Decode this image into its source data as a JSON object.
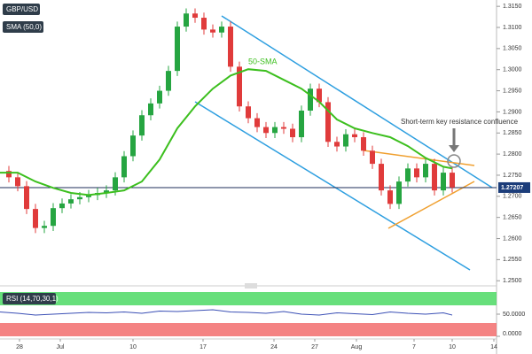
{
  "chart_data": {
    "type": "candlestick",
    "symbol": "GBP/USD",
    "up_color": "#26a541",
    "down_color": "#e03b3b",
    "xlim": [
      0,
      56
    ],
    "xticks": [
      {
        "value": 2.2,
        "label": "28"
      },
      {
        "value": 6.8,
        "label": "Jul"
      },
      {
        "value": 15,
        "label": "10"
      },
      {
        "value": 22.9,
        "label": "17"
      },
      {
        "value": 30.9,
        "label": "24"
      },
      {
        "value": 35.5,
        "label": "27"
      },
      {
        "value": 40.2,
        "label": "Aug"
      },
      {
        "value": 46.7,
        "label": "7"
      },
      {
        "value": 51,
        "label": "10"
      },
      {
        "value": 55.7,
        "label": "14"
      }
    ],
    "ylim": [
      1.249,
      1.3165
    ],
    "yticks": [
      {
        "value": 1.25,
        "label": "1.2500"
      },
      {
        "value": 1.255,
        "label": "1.2550"
      },
      {
        "value": 1.26,
        "label": "1.2600"
      },
      {
        "value": 1.265,
        "label": "1.2650"
      },
      {
        "value": 1.27,
        "label": "1.2700"
      },
      {
        "value": 1.275,
        "label": "1.2750"
      },
      {
        "value": 1.28,
        "label": "1.2800"
      },
      {
        "value": 1.285,
        "label": "1.2850"
      },
      {
        "value": 1.29,
        "label": "1.2900"
      },
      {
        "value": 1.295,
        "label": "1.2950"
      },
      {
        "value": 1.3,
        "label": "1.3000"
      },
      {
        "value": 1.305,
        "label": "1.3050"
      },
      {
        "value": 1.31,
        "label": "1.3100"
      },
      {
        "value": 1.315,
        "label": "1.3150"
      }
    ],
    "last_price": 1.27207,
    "x": [
      1,
      2,
      3,
      4,
      5,
      6,
      7,
      8,
      9,
      10,
      11,
      12,
      13,
      14,
      15,
      16,
      17,
      18,
      19,
      20,
      21,
      22,
      23,
      24,
      25,
      26,
      27,
      28,
      29,
      30,
      31,
      32,
      33,
      34,
      35,
      36,
      37,
      38,
      39,
      40,
      41,
      42,
      43,
      44,
      45,
      46,
      47,
      48,
      49,
      50,
      51
    ],
    "open": [
      1.276,
      1.2745,
      1.2724,
      1.267,
      1.2625,
      1.263,
      1.2672,
      1.2683,
      1.2693,
      1.2698,
      1.2703,
      1.2708,
      1.2714,
      1.2745,
      1.2795,
      1.2844,
      1.2892,
      1.292,
      1.295,
      1.2997,
      1.3102,
      1.3133,
      1.3123,
      1.3095,
      1.3088,
      1.3102,
      1.3007,
      1.2913,
      1.2885,
      1.2864,
      1.285,
      1.2864,
      1.286,
      1.284,
      1.2903,
      1.2955,
      1.2923,
      1.2829,
      1.2818,
      1.2847,
      1.284,
      1.2808,
      1.2777,
      1.2714,
      1.2682,
      1.2735,
      1.2766,
      1.2745,
      1.2777,
      1.2714,
      1.2756
    ],
    "high": [
      1.2772,
      1.2757,
      1.2736,
      1.2682,
      1.2642,
      1.2684,
      1.2695,
      1.2705,
      1.271,
      1.2715,
      1.272,
      1.2726,
      1.2757,
      1.2807,
      1.2856,
      1.2904,
      1.2932,
      1.2962,
      1.3009,
      1.3114,
      1.3145,
      1.3145,
      1.3135,
      1.3107,
      1.3114,
      1.3114,
      1.3019,
      1.2925,
      1.2897,
      1.2876,
      1.2876,
      1.2876,
      1.2872,
      1.2915,
      1.2967,
      1.2967,
      1.2935,
      1.2841,
      1.2859,
      1.2859,
      1.2852,
      1.282,
      1.2789,
      1.2726,
      1.2747,
      1.2778,
      1.2778,
      1.2789,
      1.2789,
      1.2768,
      1.2768
    ],
    "low": [
      1.2733,
      1.2712,
      1.2658,
      1.2613,
      1.2613,
      1.2618,
      1.266,
      1.2671,
      1.2681,
      1.2686,
      1.2691,
      1.2696,
      1.2702,
      1.2733,
      1.2783,
      1.2832,
      1.288,
      1.2908,
      1.2938,
      1.2985,
      1.309,
      1.3111,
      1.3083,
      1.3076,
      1.3076,
      1.2995,
      1.2901,
      1.2873,
      1.2852,
      1.2838,
      1.2838,
      1.2848,
      1.2828,
      1.2828,
      1.2891,
      1.2911,
      1.2817,
      1.2806,
      1.2806,
      1.2828,
      1.2796,
      1.2765,
      1.2702,
      1.267,
      1.267,
      1.2723,
      1.2733,
      1.2733,
      1.2702,
      1.2702,
      1.2709
    ],
    "close": [
      1.2745,
      1.2724,
      1.267,
      1.2625,
      1.263,
      1.2672,
      1.2683,
      1.2693,
      1.2698,
      1.2703,
      1.2708,
      1.2714,
      1.2745,
      1.2795,
      1.2844,
      1.2892,
      1.292,
      1.295,
      1.2997,
      1.3102,
      1.3133,
      1.3123,
      1.3095,
      1.3088,
      1.3102,
      1.3007,
      1.2913,
      1.2885,
      1.2864,
      1.285,
      1.2864,
      1.286,
      1.284,
      1.2903,
      1.2955,
      1.2923,
      1.2829,
      1.2818,
      1.2847,
      1.284,
      1.2808,
      1.2777,
      1.2714,
      1.2682,
      1.2735,
      1.2766,
      1.2745,
      1.2777,
      1.2714,
      1.2756,
      1.2721
    ],
    "sma": {
      "name": "SMA (50,0)",
      "color": "#3cbf1e",
      "x": [
        0,
        2,
        4,
        6,
        8,
        10,
        12,
        14,
        16,
        18,
        20,
        22,
        24,
        26,
        28,
        30,
        32,
        34,
        36,
        38,
        40,
        42,
        44,
        46,
        48,
        50,
        51
      ],
      "values": [
        1.2756,
        1.2756,
        1.2735,
        1.272,
        1.2708,
        1.2703,
        1.2708,
        1.2714,
        1.2735,
        1.2787,
        1.2861,
        1.2913,
        1.2955,
        1.2986,
        1.3001,
        1.2997,
        1.2976,
        1.2955,
        1.2924,
        1.2882,
        1.2861,
        1.285,
        1.284,
        1.2819,
        1.2791,
        1.277,
        1.2766
      ]
    },
    "annotations": [
      "50-SMA",
      "Short-term key resistance confluence"
    ],
    "rsi": {
      "name": "RSI (14,70,30,1)",
      "color": "#3a4fb5",
      "ylim": [
        0,
        100
      ],
      "overbought": 70,
      "oversold": 30,
      "yticks": [
        {
          "value": 50,
          "label": "50.0000"
        },
        {
          "value": 0,
          "label": "0.0000"
        }
      ],
      "x": [
        0,
        2,
        4,
        6,
        8,
        10,
        12,
        14,
        16,
        18,
        20,
        22,
        24,
        26,
        28,
        30,
        32,
        34,
        36,
        38,
        40,
        42,
        44,
        46,
        48,
        50,
        51
      ],
      "values": [
        55,
        52,
        48,
        50,
        52,
        54,
        53,
        55,
        52,
        57,
        56,
        58,
        60,
        55,
        54,
        52,
        56,
        50,
        48,
        53,
        51,
        49,
        55,
        52,
        50,
        53,
        48
      ]
    }
  }
}
